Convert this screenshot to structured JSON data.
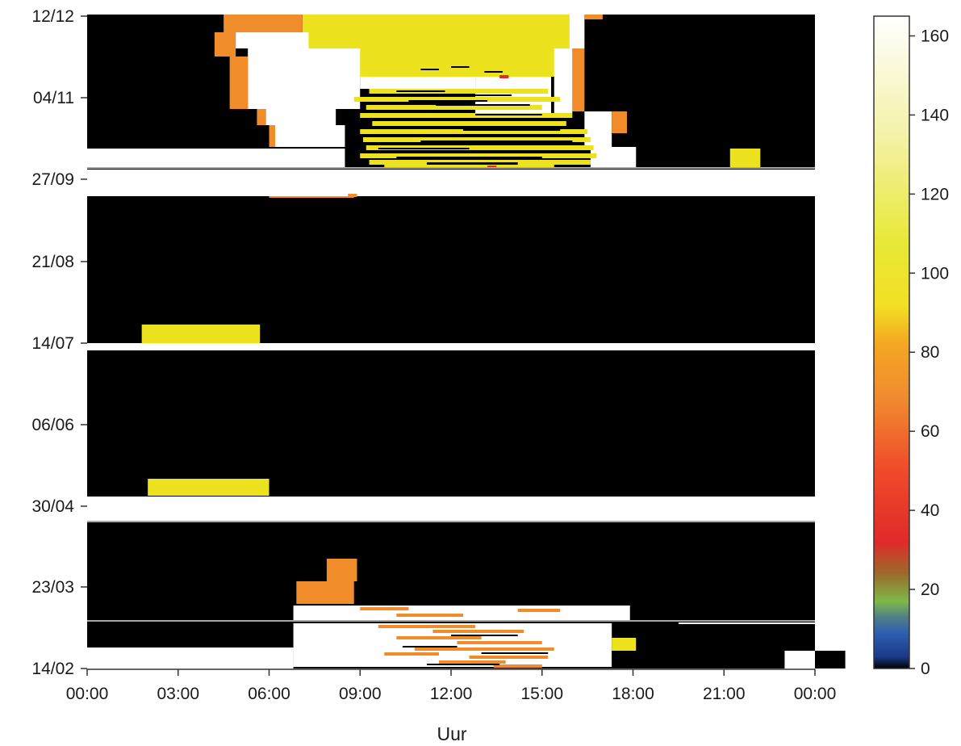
{
  "chart_data": {
    "type": "heatmap",
    "title": "",
    "xlabel": "Uur",
    "ylabel": "",
    "x_ticks": [
      "00:00",
      "03:00",
      "06:00",
      "09:00",
      "12:00",
      "15:00",
      "18:00",
      "21:00",
      "00:00"
    ],
    "xlim_hours": [
      0,
      24
    ],
    "y_ticks": [
      "14/02",
      "23/03",
      "30/04",
      "06/06",
      "14/07",
      "21/08",
      "27/09",
      "04/11",
      "12/12"
    ],
    "colorbar": {
      "ticks": [
        "0",
        "20",
        "40",
        "60",
        "80",
        "100",
        "120",
        "140",
        "160"
      ],
      "range": [
        0,
        165
      ],
      "stops": [
        {
          "value": 0,
          "color": "#000000"
        },
        {
          "value": 3,
          "color": "#1a3a8a"
        },
        {
          "value": 9,
          "color": "#2f5fb0"
        },
        {
          "value": 13,
          "color": "#4f7f86"
        },
        {
          "value": 17,
          "color": "#7fb84a"
        },
        {
          "value": 24,
          "color": "#9a6a2a"
        },
        {
          "value": 32,
          "color": "#e02a2a"
        },
        {
          "value": 50,
          "color": "#f04a2a"
        },
        {
          "value": 68,
          "color": "#f08a30"
        },
        {
          "value": 82,
          "color": "#f5a623"
        },
        {
          "value": 92,
          "color": "#f2e022"
        },
        {
          "value": 108,
          "color": "#e8e838"
        },
        {
          "value": 135,
          "color": "#f4f2a8"
        },
        {
          "value": 165,
          "color": "#ffffff"
        }
      ]
    },
    "colors": {
      "zero": "#000000",
      "yellow": "#ede21e",
      "orange": "#f08c2a",
      "white": "#ffffff",
      "red": "#e02a2a",
      "separator": "#a7a7a7"
    }
  }
}
